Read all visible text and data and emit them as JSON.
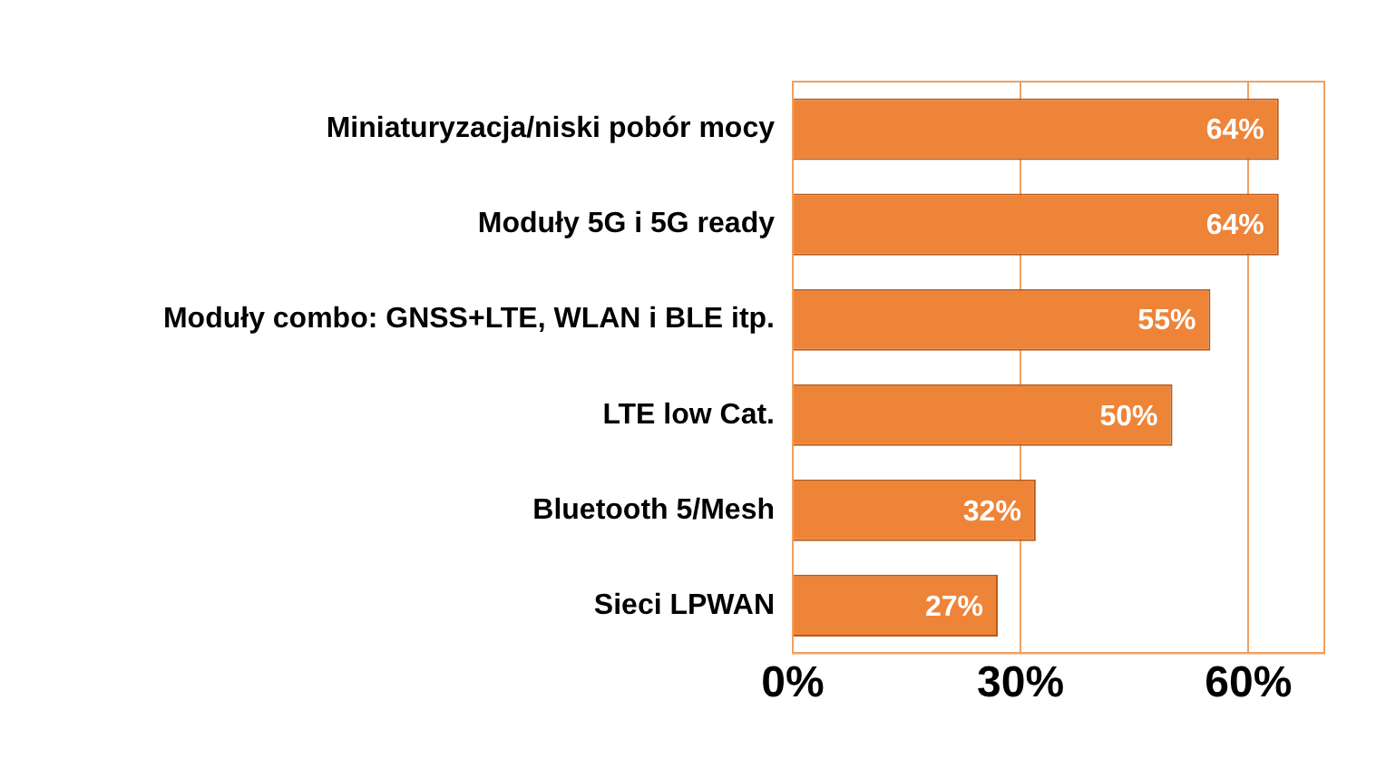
{
  "chart_data": {
    "type": "bar",
    "orientation": "horizontal",
    "categories": [
      "Miniaturyzacja/niski pobór mocy",
      "Moduły 5G i 5G ready",
      "Moduły combo: GNSS+LTE, WLAN i BLE itp.",
      "LTE low Cat.",
      "Bluetooth 5/Mesh",
      "Sieci LPWAN"
    ],
    "values": [
      64,
      64,
      55,
      50,
      32,
      27
    ],
    "value_labels": [
      "64%",
      "64%",
      "55%",
      "50%",
      "32%",
      "27%"
    ],
    "color": "#ee8438",
    "xlim": [
      0,
      70
    ],
    "xticks": [
      {
        "value": 0,
        "label": "0%"
      },
      {
        "value": 30,
        "label": "30%"
      },
      {
        "value": 60,
        "label": "60%"
      }
    ],
    "grid": "x"
  }
}
